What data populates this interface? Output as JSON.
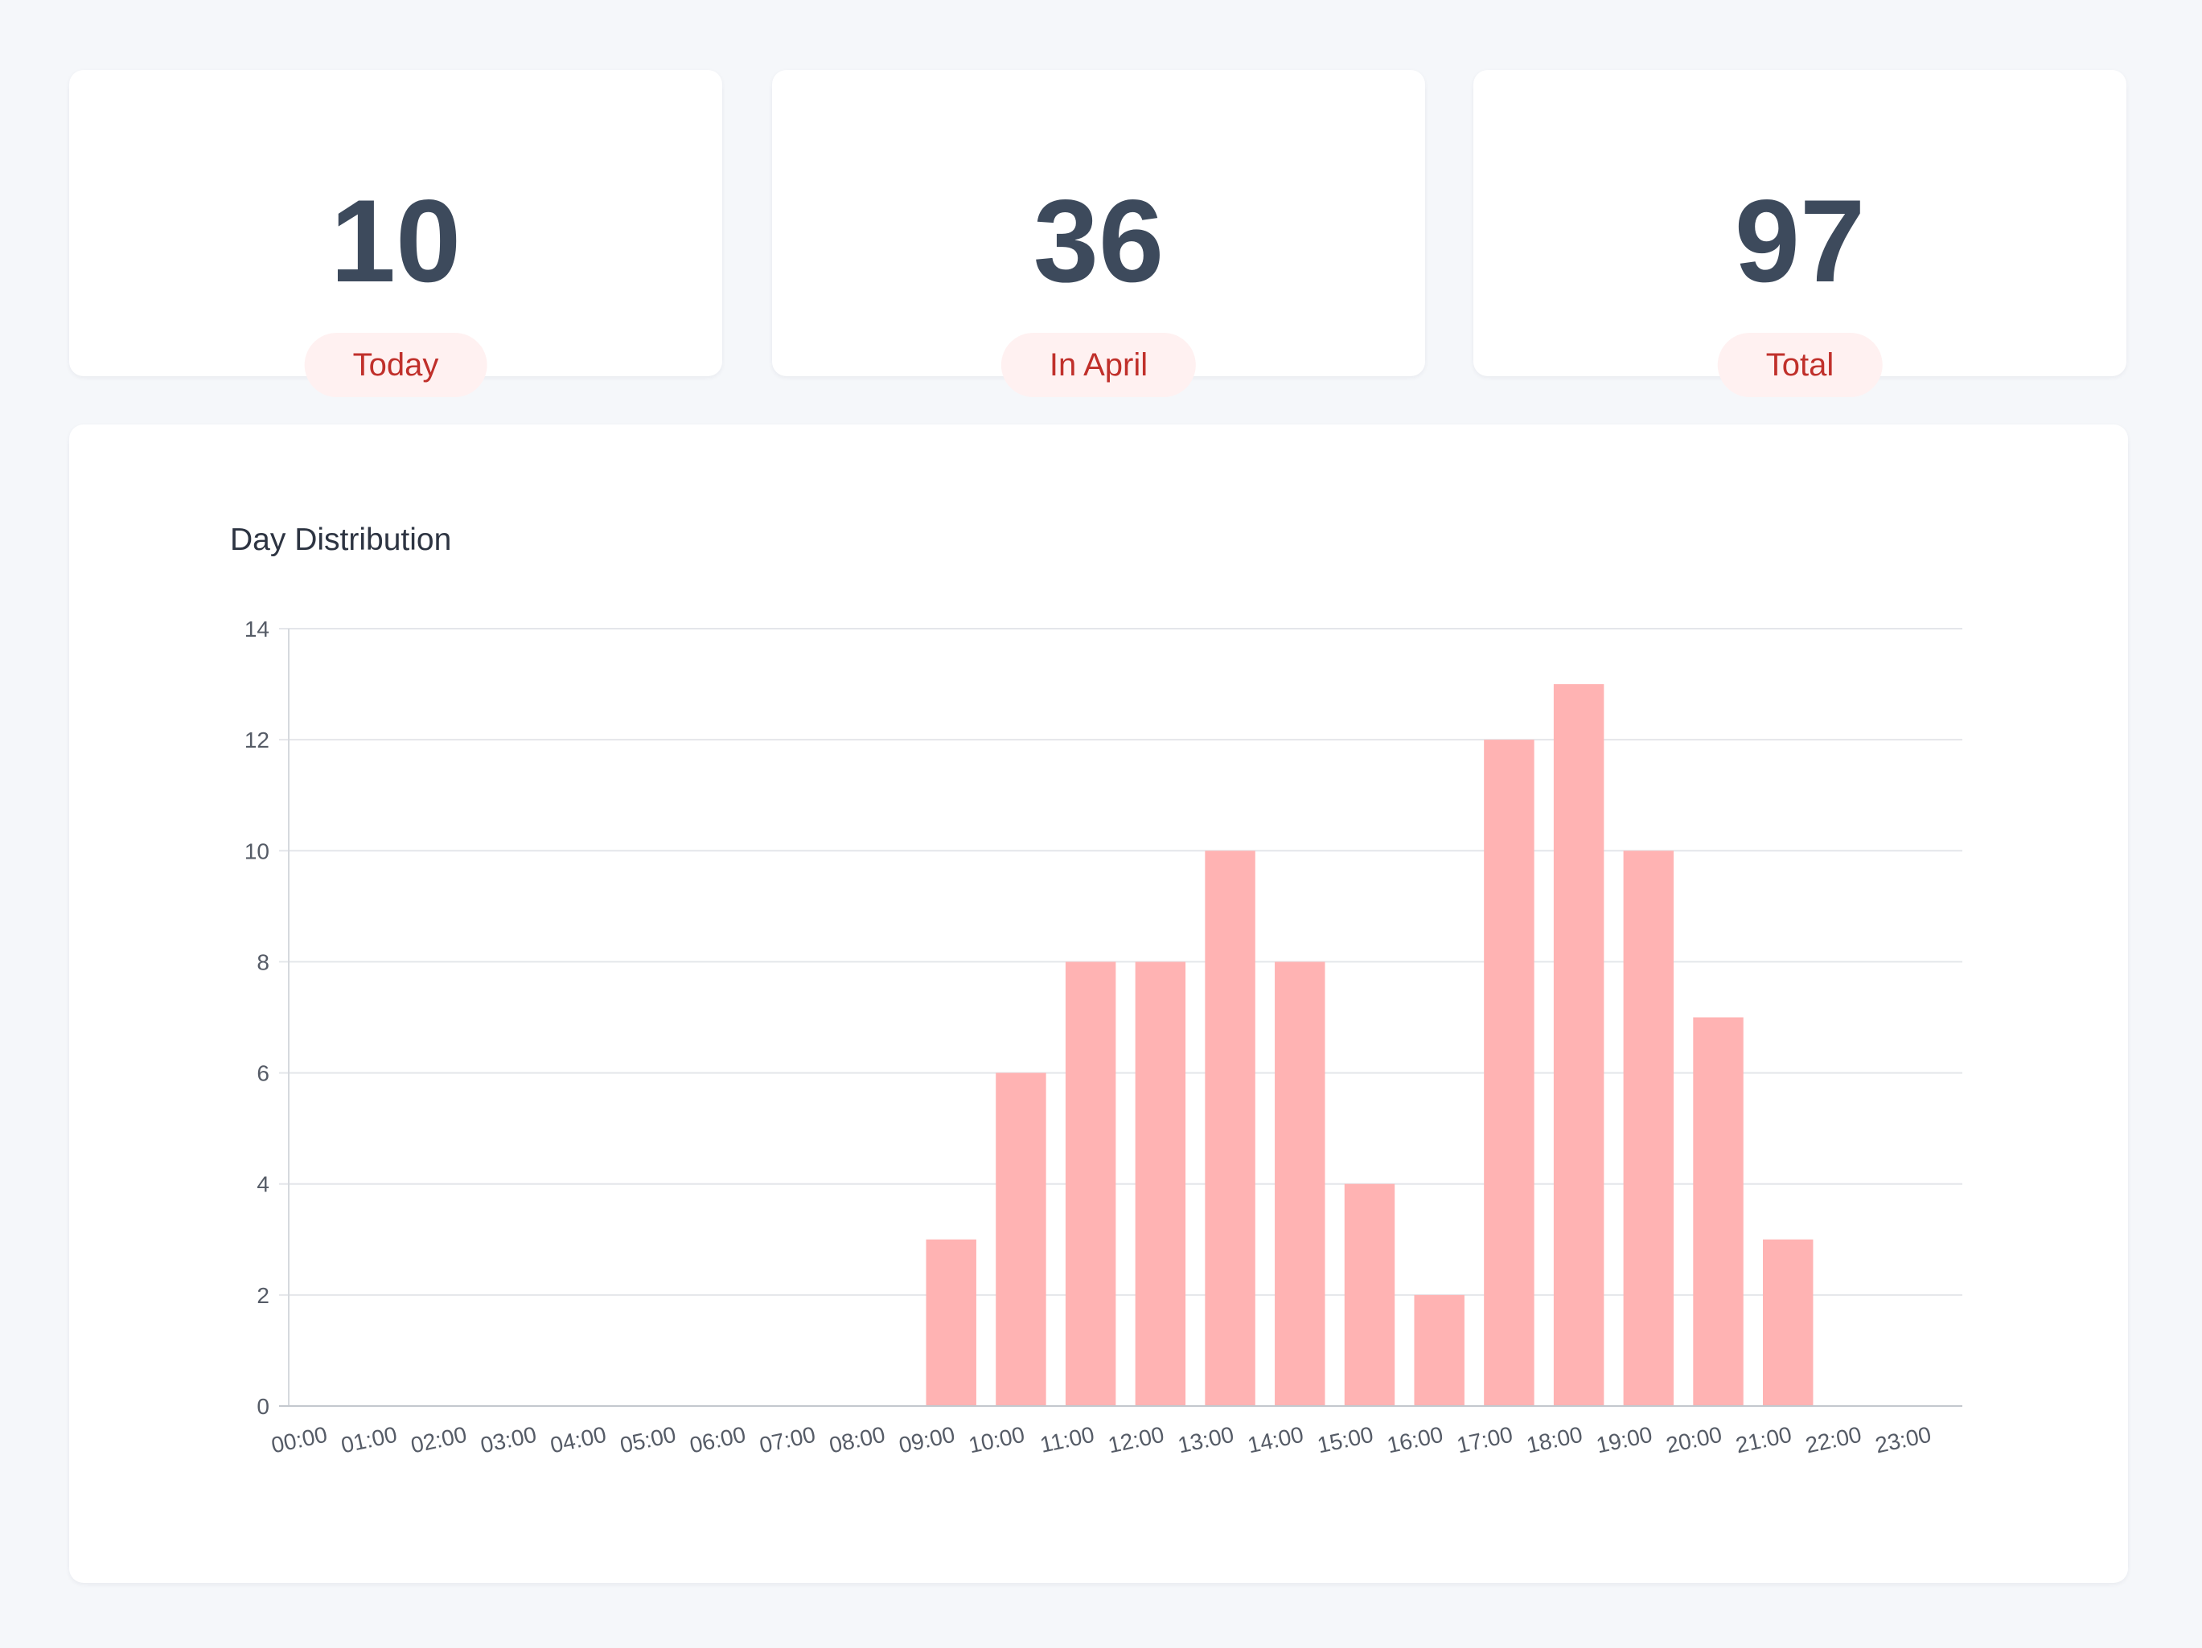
{
  "stats": [
    {
      "value": "10",
      "label": "Today"
    },
    {
      "value": "36",
      "label": "In April"
    },
    {
      "value": "97",
      "label": "Total"
    }
  ],
  "colors": {
    "bar": "#ffb3b3",
    "badge_bg": "#fff1f1",
    "badge_text": "#c0302b",
    "value_text": "#3d4a5c",
    "grid": "#e4e6ea"
  },
  "chart_data": {
    "type": "bar",
    "title": "Day Distribution",
    "xlabel": "",
    "ylabel": "",
    "ylim": [
      0,
      14
    ],
    "yticks": [
      0,
      2,
      4,
      6,
      8,
      10,
      12,
      14
    ],
    "grid": true,
    "legend": "none",
    "categories": [
      "00:00",
      "01:00",
      "02:00",
      "03:00",
      "04:00",
      "05:00",
      "06:00",
      "07:00",
      "08:00",
      "09:00",
      "10:00",
      "11:00",
      "12:00",
      "13:00",
      "14:00",
      "15:00",
      "16:00",
      "17:00",
      "18:00",
      "19:00",
      "20:00",
      "21:00",
      "22:00",
      "23:00"
    ],
    "values": [
      0,
      0,
      0,
      0,
      0,
      0,
      0,
      0,
      0,
      3,
      6,
      8,
      8,
      10,
      8,
      4,
      2,
      12,
      13,
      10,
      7,
      3,
      0,
      0
    ]
  }
}
